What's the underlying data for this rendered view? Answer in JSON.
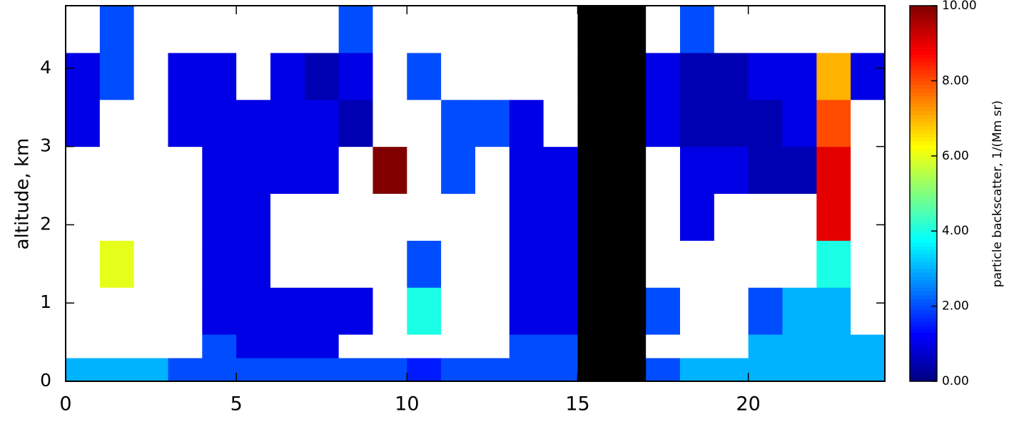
{
  "chart_data": {
    "type": "heatmap",
    "x_label": null,
    "y_label": "altitude, km",
    "colorbar_label": "particle backscatter, 1/(Mm sr)",
    "xlim": [
      0,
      24
    ],
    "xticks": [
      0,
      5,
      10,
      15,
      20
    ],
    "ylim": [
      0,
      4.8
    ],
    "yticks": [
      0,
      1,
      2,
      3,
      4
    ],
    "clim": [
      0,
      10
    ],
    "cticks": [
      {
        "value": 0,
        "label": "0.00"
      },
      {
        "value": 2,
        "label": "2.00"
      },
      {
        "value": 4,
        "label": "4.00"
      },
      {
        "value": 6,
        "label": "6.00"
      },
      {
        "value": 8,
        "label": "8.00"
      },
      {
        "value": 10,
        "label": "10.00"
      }
    ],
    "colormap": "jet",
    "over_color": "#ffffff",
    "missing_color": "#000000",
    "x_bins": [
      0,
      1,
      2,
      3,
      4,
      5,
      6,
      7,
      8,
      9,
      10,
      11,
      12,
      13,
      14,
      15,
      16,
      17,
      18,
      19,
      20,
      21,
      22,
      23,
      24
    ],
    "y_bins": [
      0,
      0.3,
      0.6,
      1.2,
      1.8,
      2.4,
      3.0,
      3.6,
      4.2,
      4.8
    ],
    "values": [
      [
        3,
        3,
        3,
        2,
        2,
        2,
        2,
        2,
        2,
        2,
        1.5,
        2,
        2,
        2,
        2,
        null,
        null,
        2,
        3,
        3,
        3,
        3,
        3,
        3
      ],
      [
        12,
        12,
        12,
        12,
        2,
        1,
        1,
        1,
        12,
        12,
        12,
        12,
        12,
        2,
        2,
        null,
        null,
        12,
        12,
        12,
        3,
        3,
        3,
        3
      ],
      [
        12,
        12,
        12,
        12,
        1,
        1,
        1,
        1,
        1,
        12,
        4,
        12,
        12,
        1,
        1,
        null,
        null,
        2,
        12,
        12,
        2,
        3,
        3,
        12
      ],
      [
        12,
        6,
        12,
        12,
        1,
        1,
        12,
        12,
        12,
        12,
        2,
        12,
        12,
        1,
        1,
        null,
        null,
        12,
        12,
        12,
        12,
        12,
        4,
        12
      ],
      [
        12,
        12,
        12,
        12,
        1,
        1,
        12,
        12,
        12,
        12,
        12,
        12,
        12,
        1,
        1,
        null,
        null,
        12,
        1,
        12,
        12,
        12,
        9,
        12
      ],
      [
        12,
        12,
        12,
        12,
        1,
        1,
        1,
        1,
        12,
        10,
        12,
        2,
        12,
        1,
        1,
        null,
        null,
        12,
        1,
        1,
        0.5,
        0.5,
        9,
        12
      ],
      [
        1,
        12,
        12,
        1,
        1,
        1,
        1,
        1,
        0.5,
        12,
        12,
        2,
        2,
        1,
        12,
        null,
        null,
        1,
        0.5,
        0.5,
        0.5,
        1,
        8,
        12
      ],
      [
        1,
        2,
        12,
        1,
        1,
        12,
        1,
        0.5,
        1,
        12,
        2,
        12,
        12,
        12,
        12,
        null,
        null,
        1,
        0.5,
        0.5,
        1,
        1,
        7,
        1
      ],
      [
        12,
        2,
        12,
        12,
        12,
        12,
        12,
        12,
        2,
        12,
        12,
        12,
        12,
        12,
        12,
        null,
        null,
        12,
        2,
        12,
        12,
        12,
        12,
        12
      ]
    ]
  }
}
